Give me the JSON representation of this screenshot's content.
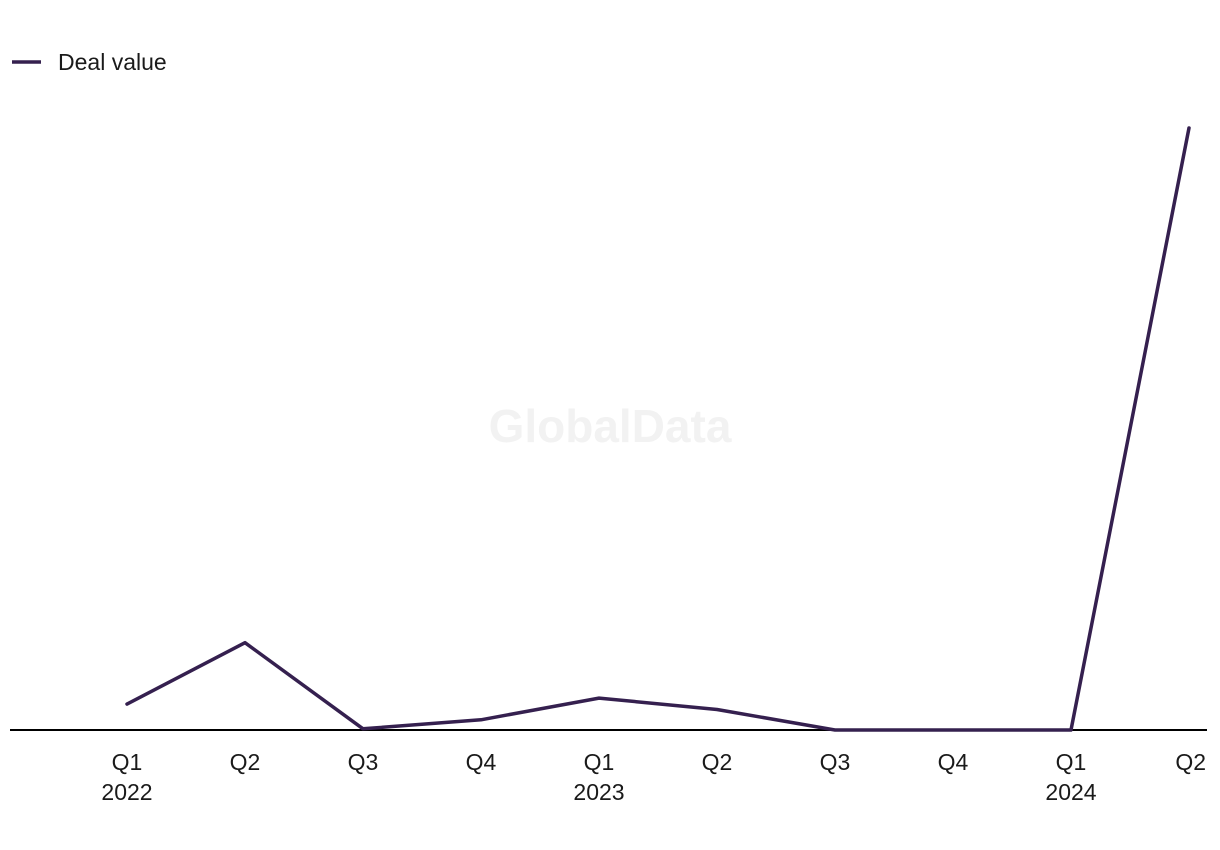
{
  "watermark": "GlobalData",
  "colors": {
    "series": "#35204f",
    "axis": "#000000",
    "text": "#1a1a1a",
    "watermark": "#f2f2f2"
  },
  "chart_data": {
    "type": "line",
    "title": "",
    "xlabel": "",
    "ylabel": "",
    "legend_position": "top-left",
    "grid": false,
    "categories": [
      "Q1",
      "Q2",
      "Q3",
      "Q4",
      "Q1",
      "Q2",
      "Q3",
      "Q4",
      "Q1",
      "Q2"
    ],
    "year_labels": [
      "2022",
      "",
      "",
      "",
      "2023",
      "",
      "",
      "",
      "2024",
      ""
    ],
    "ylim": [
      0,
      100
    ],
    "series": [
      {
        "name": "Deal value",
        "values": [
          4.3,
          14.5,
          0.2,
          1.7,
          5.3,
          3.4,
          0,
          0,
          0,
          100
        ]
      }
    ]
  }
}
